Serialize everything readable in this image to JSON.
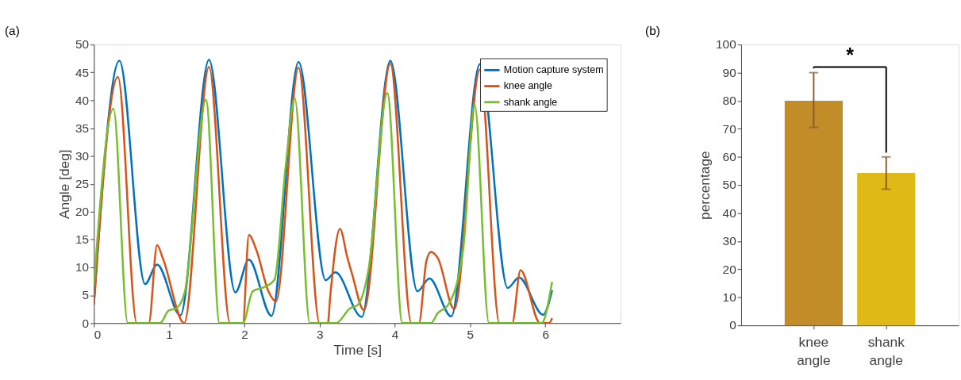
{
  "chart_data": [
    {
      "type": "line",
      "title": "(a)",
      "xlabel": "Time [s]",
      "ylabel": "Angle [deg]",
      "xlim": [
        0,
        7
      ],
      "xticks": [
        0,
        1,
        2,
        3,
        4,
        5,
        6
      ],
      "ylim": [
        0,
        50
      ],
      "yticks": [
        0,
        5,
        10,
        15,
        20,
        25,
        30,
        35,
        40,
        45,
        50
      ],
      "grid": false,
      "legend": "top right",
      "line_style": "solid",
      "marker": "none",
      "series": [
        {
          "name": "Motion capture system",
          "color": "#0072bd",
          "x": [
            0,
            0.34,
            0.68,
            0.84,
            1.15,
            1.53,
            1.88,
            2.06,
            2.36,
            2.72,
            3.08,
            3.21,
            3.56,
            3.94,
            4.3,
            4.46,
            4.75,
            5.13,
            5.5,
            5.65,
            5.97,
            6.09
          ],
          "values": [
            3.3,
            47.1,
            7.0,
            10.5,
            1.4,
            47.3,
            5.5,
            11.4,
            1.3,
            46.9,
            7.7,
            9.1,
            1.1,
            47.1,
            5.7,
            8.0,
            1.2,
            46.5,
            6.3,
            8.2,
            1.5,
            5.9
          ]
        },
        {
          "name": "knee angle",
          "color": "#d95319",
          "x": [
            0,
            0.32,
            0.57,
            0.73,
            0.84,
            0.92,
            1.2,
            1.53,
            1.81,
            1.98,
            2.06,
            2.16,
            2.32,
            2.42,
            2.72,
            3.0,
            3.11,
            3.14,
            3.27,
            3.37,
            3.43,
            3.59,
            3.94,
            4.22,
            4.32,
            4.42,
            4.48,
            4.57,
            4.79,
            5.13,
            5.39,
            5.56,
            5.67,
            5.93,
            6.05,
            6.09
          ],
          "values": [
            3.3,
            44.2,
            0,
            0,
            14.0,
            11.5,
            0,
            46.0,
            0,
            0,
            15.8,
            13.1,
            5.7,
            3.9,
            45.9,
            0,
            0,
            4.6,
            16.9,
            11.7,
            8.9,
            2.3,
            46.6,
            0,
            0,
            11.2,
            12.8,
            11.7,
            2.5,
            45.5,
            0,
            0,
            9.5,
            0,
            0,
            0.9
          ]
        },
        {
          "name": "shank angle",
          "color": "#77be2e",
          "x": [
            0,
            0.26,
            0.45,
            0.88,
            0.99,
            1.1,
            1.21,
            1.49,
            1.67,
            1.98,
            2.11,
            2.27,
            2.4,
            2.55,
            2.67,
            2.87,
            3.22,
            3.4,
            3.51,
            3.65,
            3.9,
            4.1,
            4.48,
            4.57,
            4.71,
            4.91,
            5.06,
            5.25,
            5.95,
            6.09
          ],
          "values": [
            6.7,
            38.5,
            0,
            0,
            2.2,
            2.7,
            5.7,
            40.1,
            0,
            0,
            5.7,
            6.5,
            7.8,
            28.3,
            40.3,
            0,
            0,
            2.6,
            3.3,
            9.6,
            41.3,
            0,
            0,
            1.8,
            3.3,
            13.5,
            39.3,
            0,
            0,
            7.4
          ]
        }
      ]
    },
    {
      "type": "bar",
      "title": "(b)",
      "ylabel": "percentage",
      "categories": [
        "knee angle",
        "shank angle"
      ],
      "values": [
        80,
        54.3
      ],
      "colors": [
        "#c28c28",
        "#dfba17"
      ],
      "errors": [
        [
          70.5,
          90
        ],
        [
          48.5,
          60
        ]
      ],
      "ylim": [
        0,
        100
      ],
      "yticks": [
        0,
        10,
        20,
        30,
        40,
        50,
        60,
        70,
        80,
        90,
        100
      ],
      "grid": false,
      "legend": false,
      "annotations": [
        "*"
      ]
    }
  ]
}
